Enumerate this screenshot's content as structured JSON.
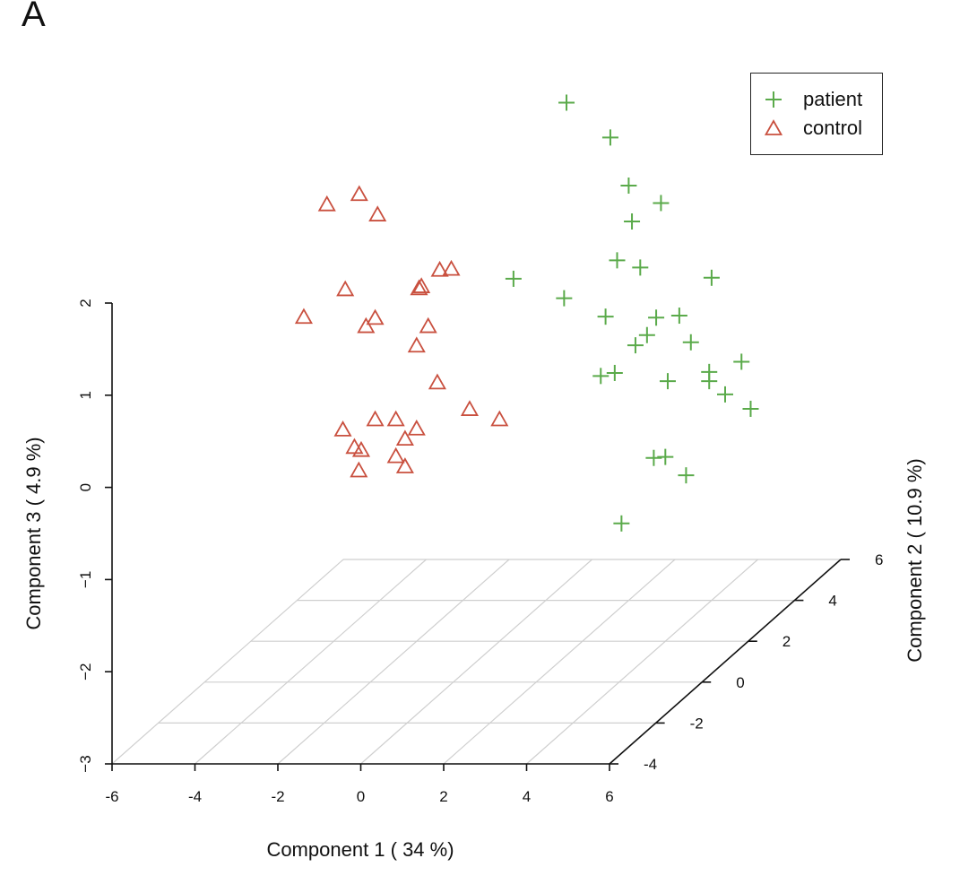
{
  "panel_label": "A",
  "legend": {
    "items": [
      {
        "label": "patient",
        "color": "#5aaa4a",
        "marker": "plus"
      },
      {
        "label": "control",
        "color": "#c9503f",
        "marker": "triangle"
      }
    ]
  },
  "chart_data": {
    "type": "scatter",
    "subtype": "3d-scatter",
    "xlabel": "Component 1 ( 34 %)",
    "ylabel": "Component 2 ( 10.9 %)",
    "zlabel": "Component 3 ( 4.9 %)",
    "xlim": [
      -6,
      6
    ],
    "ylim": [
      -4,
      6
    ],
    "zlim": [
      -3,
      2
    ],
    "x_ticks": [
      "-6",
      "-4",
      "-2",
      "0",
      "2",
      "4",
      "6"
    ],
    "y_ticks": [
      "-4",
      "-2",
      "0",
      "2",
      "4",
      "6"
    ],
    "z_ticks": [
      "−3",
      "−2",
      "−1",
      "0",
      "1",
      "2"
    ],
    "grid": true,
    "legend_position": "top-right",
    "series": [
      {
        "name": "patient",
        "marker": "plus",
        "color": "#5aaa4a",
        "points": [
          {
            "x": 0.5,
            "y": 4.0,
            "z": 2.4
          },
          {
            "x": 2.0,
            "y": 4.0,
            "z": 1.5
          },
          {
            "x": 2.5,
            "y": 4.5,
            "z": 1.2
          },
          {
            "x": 1.8,
            "y": 4.5,
            "z": 1.0
          },
          {
            "x": 1.0,
            "y": 5.0,
            "z": 1.8
          },
          {
            "x": 1.0,
            "y": 3.0,
            "z": 0.5
          },
          {
            "x": 2.0,
            "y": 3.5,
            "z": 0.8
          },
          {
            "x": 2.0,
            "y": 3.0,
            "z": 0.3
          },
          {
            "x": -0.5,
            "y": 3.5,
            "z": 0.6
          },
          {
            "x": 2.0,
            "y": 4.5,
            "z": 0.5
          },
          {
            "x": 4.0,
            "y": 4.0,
            "z": 0.5
          },
          {
            "x": 3.5,
            "y": 2.5,
            "z": 0.4
          },
          {
            "x": 3.5,
            "y": 3.5,
            "z": 0.2
          },
          {
            "x": 3.0,
            "y": 3.0,
            "z": 0.1
          },
          {
            "x": 3.0,
            "y": 1.0,
            "z": 0.1
          },
          {
            "x": 3.0,
            "y": 2.5,
            "z": 0.1
          },
          {
            "x": 2.5,
            "y": 2.5,
            "z": -0.2
          },
          {
            "x": 4.5,
            "y": 3.0,
            "z": -0.4
          },
          {
            "x": 3.5,
            "y": 3.0,
            "z": -0.4
          },
          {
            "x": 3.5,
            "y": 4.0,
            "z": -0.2
          },
          {
            "x": 4.5,
            "y": 3.0,
            "z": -0.3
          },
          {
            "x": 5.0,
            "y": 3.5,
            "z": -0.3
          },
          {
            "x": 5.5,
            "y": 3.0,
            "z": -0.7
          },
          {
            "x": 4.0,
            "y": 2.0,
            "z": -1.0
          },
          {
            "x": 4.0,
            "y": 1.5,
            "z": -0.9
          },
          {
            "x": 4.5,
            "y": 2.0,
            "z": -1.2
          },
          {
            "x": 3.5,
            "y": 1.0,
            "z": -1.5
          },
          {
            "x": 6.0,
            "y": 1.0,
            "z": -0.1
          }
        ]
      },
      {
        "name": "control",
        "marker": "triangle",
        "color": "#c9503f",
        "points": [
          {
            "x": -5.0,
            "y": 3.5,
            "z": 1.4
          },
          {
            "x": -4.5,
            "y": 4.0,
            "z": 1.4
          },
          {
            "x": -3.5,
            "y": 3.0,
            "z": 1.4
          },
          {
            "x": -4.0,
            "y": 2.5,
            "z": 0.7
          },
          {
            "x": -3.0,
            "y": 2.0,
            "z": 0.5
          },
          {
            "x": -2.5,
            "y": 3.0,
            "z": 0.6
          },
          {
            "x": -3.0,
            "y": 4.0,
            "z": 0.4
          },
          {
            "x": -2.0,
            "y": 3.0,
            "z": 0.8
          },
          {
            "x": -2.0,
            "y": 3.5,
            "z": 0.7
          },
          {
            "x": -5.0,
            "y": 2.5,
            "z": 0.4
          },
          {
            "x": -3.5,
            "y": 2.5,
            "z": 0.3
          },
          {
            "x": -2.0,
            "y": 2.5,
            "z": 0.3
          },
          {
            "x": -2.0,
            "y": 2.0,
            "z": 0.2
          },
          {
            "x": -1.5,
            "y": 2.0,
            "z": -0.2
          },
          {
            "x": -3.5,
            "y": 1.5,
            "z": -0.6
          },
          {
            "x": -3.0,
            "y": 2.0,
            "z": -0.6
          },
          {
            "x": -2.0,
            "y": 2.0,
            "z": -0.7
          },
          {
            "x": -2.5,
            "y": 2.0,
            "z": -0.6
          },
          {
            "x": -2.0,
            "y": 1.5,
            "z": -0.7
          },
          {
            "x": -1.0,
            "y": 2.5,
            "z": -0.6
          },
          {
            "x": -3.5,
            "y": 2.0,
            "z": -0.9
          },
          {
            "x": -2.5,
            "y": 2.0,
            "z": -1.0
          },
          {
            "x": -2.0,
            "y": 1.5,
            "z": -1.0
          },
          {
            "x": -2.5,
            "y": 0.5,
            "z": -0.6
          },
          {
            "x": 0.0,
            "y": 2.0,
            "z": -0.6
          },
          {
            "x": -2.0,
            "y": -0.5,
            "z": -0.6
          }
        ]
      }
    ]
  }
}
